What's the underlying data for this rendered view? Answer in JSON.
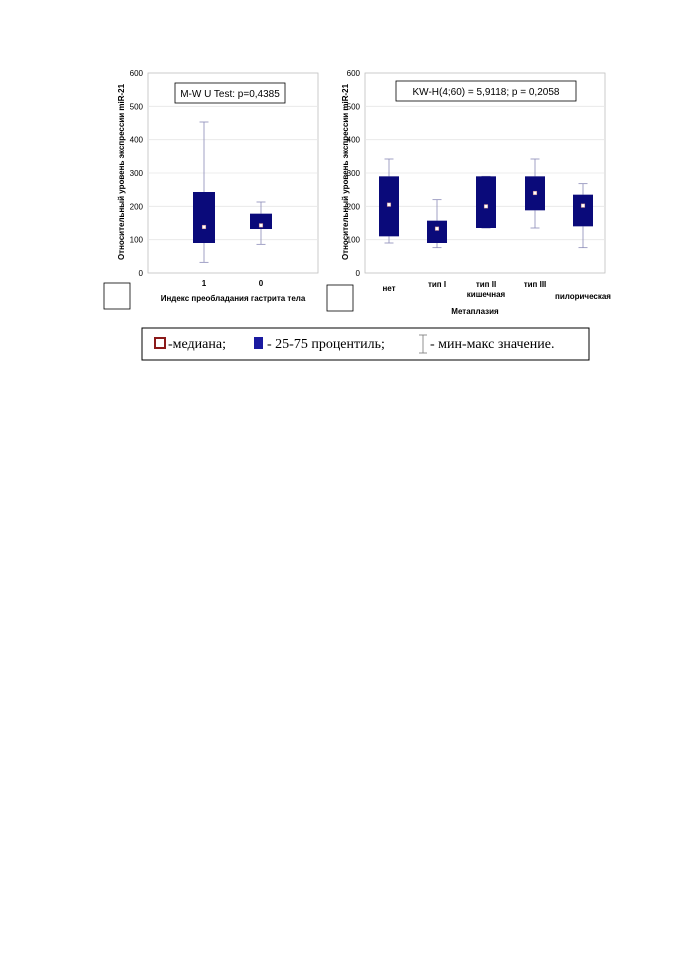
{
  "chart_data": [
    {
      "type": "boxplot",
      "ylabel": "Относительный уровень экспрессии miR-21",
      "xlabel": "Индекс преобладания гастрита тела",
      "annotation": "M-W U Test: p=0,4385",
      "ylim": [
        0,
        600
      ],
      "yticks": [
        0,
        100,
        200,
        300,
        400,
        500,
        600
      ],
      "grid": "horizontal",
      "categories": [
        "1",
        "0"
      ],
      "boxes": [
        {
          "median": 138,
          "q1": 90,
          "q3": 243,
          "min": 32,
          "max": 453
        },
        {
          "median": 143,
          "q1": 132,
          "q3": 178,
          "min": 86,
          "max": 213
        }
      ]
    },
    {
      "type": "boxplot",
      "ylabel": "Относительный уровень экспрессии miR-21",
      "xlabel": "Метаплазия",
      "annotation": "KW-H(4;60) = 5,9118; p = 0,2058",
      "ylim": [
        0,
        600
      ],
      "yticks": [
        0,
        100,
        200,
        300,
        400,
        500,
        600
      ],
      "grid": "horizontal",
      "categories": [
        "нет",
        "тип I",
        "тип II\nкишечная",
        "тип III",
        "пилорическая"
      ],
      "boxes": [
        {
          "median": 205,
          "q1": 110,
          "q3": 290,
          "min": 90,
          "max": 342
        },
        {
          "median": 133,
          "q1": 90,
          "q3": 157,
          "min": 76,
          "max": 220
        },
        {
          "median": 200,
          "q1": 135,
          "q3": 290,
          "min": 135,
          "max": 290
        },
        {
          "median": 240,
          "q1": 188,
          "q3": 290,
          "min": 135,
          "max": 342
        },
        {
          "median": 202,
          "q1": 140,
          "q3": 235,
          "min": 76,
          "max": 268
        }
      ]
    }
  ],
  "legend": {
    "median_label": "-медиана;",
    "box_label": "- 25-75 процентиль;",
    "whisker_label": "- мин-макс значение."
  },
  "colors": {
    "box_fill": "#0a0a7a",
    "whisker": "#8a8ab8",
    "grid": "#e6e6e6",
    "median_marker_border": "#c08080",
    "legend_median_border": "#8b1a1a",
    "legend_box_fill": "#1a1aa0"
  }
}
